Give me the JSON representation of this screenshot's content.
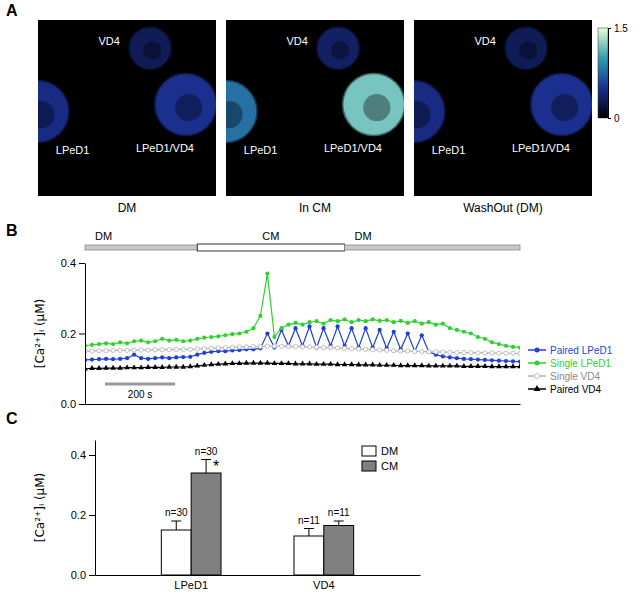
{
  "chart_data": [
    {
      "type": "image",
      "panel": "A",
      "images": [
        {
          "caption": "DM",
          "labels": [
            "VD4",
            "LPeD1",
            "LPeD1/VD4"
          ],
          "intensity": [
            0.3,
            0.45,
            0.5
          ]
        },
        {
          "caption": "In CM",
          "labels": [
            "VD4",
            "LPeD1",
            "LPeD1/VD4"
          ],
          "intensity": [
            0.35,
            0.8,
            1.2
          ]
        },
        {
          "caption": "WashOut (DM)",
          "labels": [
            "VD4",
            "LPeD1",
            "LPeD1/VD4"
          ],
          "intensity": [
            0.3,
            0.45,
            0.5
          ]
        }
      ],
      "colorbar": {
        "range": [
          0,
          1.5
        ],
        "ticks": [
          0,
          1.5
        ]
      }
    },
    {
      "type": "line",
      "panel": "B",
      "ylabel": "[Ca²⁺]ᵢ (μM)",
      "x": [
        0,
        20,
        40,
        60,
        80,
        100,
        120,
        140,
        160,
        180,
        200,
        220,
        240,
        260,
        280,
        300,
        320,
        340,
        360,
        380,
        400,
        420,
        440,
        460,
        480,
        500,
        520,
        540,
        560,
        580,
        600,
        620,
        640,
        660,
        680,
        700,
        720,
        740,
        760,
        780,
        800,
        820,
        840,
        860,
        880,
        900,
        920,
        940,
        960,
        980,
        1000,
        1020,
        1040,
        1060,
        1080,
        1100,
        1120,
        1140,
        1160,
        1180,
        1200,
        1220,
        1240
      ],
      "xlim": [
        0,
        1240
      ],
      "ylim": [
        0,
        0.4
      ],
      "yticks": [
        {
          "value": 0,
          "label": "0.0"
        },
        {
          "value": 0.2,
          "label": "0.2"
        },
        {
          "value": 0.4,
          "label": "0.4"
        }
      ],
      "tick_labels": "y",
      "legend": "right",
      "conditions": [
        {
          "label": "DM",
          "start": 0,
          "end": 320
        },
        {
          "label": "CM",
          "start": 320,
          "end": 740
        },
        {
          "label": "DM",
          "start": 740,
          "end": 1240
        }
      ],
      "scale_bar": {
        "label": "200 s",
        "length": 200
      },
      "series": [
        {
          "name": "Paired LPeD1",
          "color": "#1f3fd6",
          "marker": "circle",
          "values": [
            0.125,
            0.126,
            0.127,
            0.128,
            0.127,
            0.128,
            0.13,
            0.14,
            0.13,
            0.128,
            0.13,
            0.132,
            0.13,
            0.132,
            0.133,
            0.134,
            0.14,
            0.145,
            0.148,
            0.15,
            0.15,
            0.152,
            0.153,
            0.155,
            0.155,
            0.158,
            0.2,
            0.16,
            0.21,
            0.165,
            0.215,
            0.165,
            0.22,
            0.16,
            0.215,
            0.165,
            0.22,
            0.165,
            0.215,
            0.16,
            0.215,
            0.16,
            0.21,
            0.158,
            0.205,
            0.155,
            0.2,
            0.15,
            0.195,
            0.148,
            0.14,
            0.135,
            0.132,
            0.13,
            0.128,
            0.127,
            0.126,
            0.125,
            0.124,
            0.123,
            0.122,
            0.121,
            0.12
          ]
        },
        {
          "name": "Single LPeD1",
          "color": "#2fd12f",
          "marker": "circle",
          "values": [
            0.165,
            0.168,
            0.17,
            0.172,
            0.17,
            0.175,
            0.172,
            0.178,
            0.18,
            0.175,
            0.178,
            0.185,
            0.18,
            0.182,
            0.178,
            0.18,
            0.185,
            0.188,
            0.19,
            0.192,
            0.195,
            0.198,
            0.2,
            0.205,
            0.215,
            0.25,
            0.37,
            0.19,
            0.215,
            0.225,
            0.23,
            0.225,
            0.232,
            0.235,
            0.228,
            0.238,
            0.235,
            0.24,
            0.232,
            0.238,
            0.235,
            0.24,
            0.236,
            0.238,
            0.232,
            0.236,
            0.23,
            0.235,
            0.228,
            0.232,
            0.225,
            0.228,
            0.215,
            0.21,
            0.205,
            0.2,
            0.19,
            0.185,
            0.175,
            0.17,
            0.165,
            0.162,
            0.16
          ]
        },
        {
          "name": "Single VD4",
          "color": "#b0b0b0",
          "marker": "open-circle",
          "values": [
            0.15,
            0.15,
            0.151,
            0.151,
            0.152,
            0.152,
            0.152,
            0.153,
            0.153,
            0.153,
            0.154,
            0.154,
            0.154,
            0.155,
            0.155,
            0.155,
            0.156,
            0.157,
            0.158,
            0.159,
            0.16,
            0.161,
            0.162,
            0.162,
            0.163,
            0.163,
            0.164,
            0.164,
            0.164,
            0.163,
            0.163,
            0.162,
            0.162,
            0.161,
            0.16,
            0.16,
            0.159,
            0.158,
            0.157,
            0.156,
            0.155,
            0.154,
            0.153,
            0.152,
            0.151,
            0.15,
            0.15,
            0.149,
            0.149,
            0.148,
            0.148,
            0.147,
            0.147,
            0.146,
            0.146,
            0.146,
            0.145,
            0.145,
            0.145,
            0.144,
            0.144,
            0.144,
            0.143
          ]
        },
        {
          "name": "Paired VD4",
          "color": "#000000",
          "marker": "triangle",
          "values": [
            0.1,
            0.101,
            0.101,
            0.102,
            0.102,
            0.102,
            0.103,
            0.103,
            0.103,
            0.104,
            0.104,
            0.104,
            0.105,
            0.105,
            0.105,
            0.106,
            0.108,
            0.11,
            0.112,
            0.113,
            0.114,
            0.115,
            0.115,
            0.116,
            0.116,
            0.116,
            0.116,
            0.115,
            0.115,
            0.115,
            0.114,
            0.114,
            0.114,
            0.113,
            0.113,
            0.113,
            0.112,
            0.112,
            0.112,
            0.111,
            0.111,
            0.111,
            0.11,
            0.11,
            0.11,
            0.109,
            0.109,
            0.109,
            0.109,
            0.108,
            0.108,
            0.108,
            0.108,
            0.108,
            0.107,
            0.107,
            0.107,
            0.107,
            0.106,
            0.106,
            0.106,
            0.106,
            0.106
          ]
        }
      ]
    },
    {
      "type": "bar",
      "panel": "C",
      "ylabel": "[Ca²⁺]ᵢ (μM)",
      "categories": [
        "LPeD1",
        "VD4"
      ],
      "ylim": [
        0,
        0.45
      ],
      "yticks": [
        {
          "value": 0,
          "label": "0.0"
        },
        {
          "value": 0.2,
          "label": "0.2"
        },
        {
          "value": 0.4,
          "label": "0.4"
        }
      ],
      "legend": "upper right",
      "series": [
        {
          "name": "DM",
          "color": "#ffffff",
          "values": [
            0.15,
            0.13
          ],
          "errors": [
            0.03,
            0.025
          ],
          "n_labels": [
            "n=30",
            "n=11"
          ]
        },
        {
          "name": "CM",
          "color": "#808080",
          "values": [
            0.34,
            0.165
          ],
          "errors": [
            0.045,
            0.015
          ],
          "n_labels": [
            "n=30",
            "n=11"
          ],
          "significance": [
            "*",
            null
          ]
        }
      ]
    }
  ]
}
